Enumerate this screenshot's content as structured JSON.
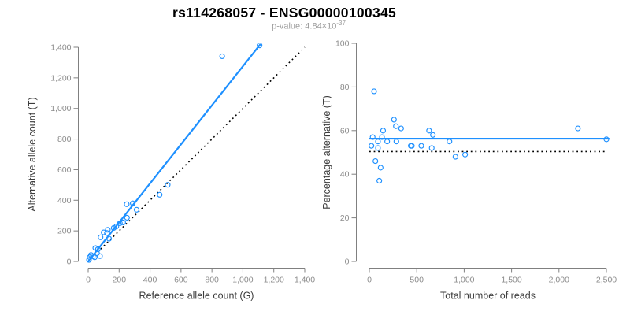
{
  "header": {
    "title": "rs114268057 - ENSG00000100345",
    "subtitle_text": "p-value: 4.84×10",
    "subtitle_sup": "-37"
  },
  "colors": {
    "accent": "#1e90ff",
    "reference_line": "#000000",
    "axis": "#808080",
    "tick_label": "#8c8c8c",
    "axis_title": "#3c3c3c",
    "title": "#000000",
    "subtitle": "#9c9c9c"
  },
  "chart_data": [
    {
      "type": "scatter",
      "name": "allele-count-scatter",
      "xlabel": "Reference allele count (G)",
      "ylabel": "Alternative allele count (T)",
      "xlim": [
        0,
        1400
      ],
      "ylim": [
        0,
        1400
      ],
      "grid": false,
      "legend": null,
      "xtick_values": [
        0,
        200,
        400,
        600,
        800,
        1000,
        1200,
        1400
      ],
      "xtick_labels": [
        "0",
        "200",
        "400",
        "600",
        "800",
        "1,000",
        "1,200",
        "1,400"
      ],
      "ytick_values": [
        0,
        200,
        400,
        600,
        800,
        1000,
        1200,
        1400
      ],
      "ytick_labels": [
        "0",
        "200",
        "400",
        "600",
        "800",
        "1,000",
        "1,200",
        "1,400"
      ],
      "points": [
        [
          5,
          10
        ],
        [
          10,
          28
        ],
        [
          18,
          42
        ],
        [
          30,
          34
        ],
        [
          42,
          27
        ],
        [
          46,
          88
        ],
        [
          57,
          54
        ],
        [
          63,
          80
        ],
        [
          76,
          35
        ],
        [
          80,
          158
        ],
        [
          100,
          190
        ],
        [
          121,
          186
        ],
        [
          127,
          207
        ],
        [
          135,
          149
        ],
        [
          165,
          219
        ],
        [
          182,
          229
        ],
        [
          205,
          250
        ],
        [
          226,
          255
        ],
        [
          251,
          286
        ],
        [
          249,
          374
        ],
        [
          288,
          380
        ],
        [
          313,
          338
        ],
        [
          462,
          436
        ],
        [
          514,
          501
        ],
        [
          866,
          1341
        ],
        [
          1108,
          1412
        ]
      ],
      "fit_line": {
        "style": "solid",
        "x1": 0,
        "y1": 0,
        "x2": 1110,
        "y2": 1416
      },
      "ref_line": {
        "style": "dotted",
        "x1": 0,
        "y1": 0,
        "x2": 1400,
        "y2": 1400
      }
    },
    {
      "type": "scatter",
      "name": "percentage-vs-reads-scatter",
      "xlabel": "Total number of reads",
      "ylabel": "Percentage alternative (T)",
      "xlim": [
        0,
        2500
      ],
      "ylim": [
        0,
        100
      ],
      "grid": false,
      "legend": null,
      "xtick_values": [
        0,
        500,
        1000,
        1500,
        2000,
        2500
      ],
      "xtick_labels": [
        "0",
        "500",
        "1,000",
        "1,500",
        "2,000",
        "2,500"
      ],
      "ytick_values": [
        0,
        20,
        40,
        60,
        80,
        100
      ],
      "ytick_labels": [
        "0",
        "20",
        "40",
        "60",
        "80",
        "100"
      ],
      "points": [
        [
          22,
          53
        ],
        [
          35,
          57
        ],
        [
          50,
          78
        ],
        [
          64,
          46
        ],
        [
          91,
          55
        ],
        [
          91,
          52
        ],
        [
          105,
          37
        ],
        [
          119,
          43
        ],
        [
          133,
          57
        ],
        [
          145,
          60
        ],
        [
          188,
          55
        ],
        [
          260,
          65
        ],
        [
          280,
          62
        ],
        [
          285,
          55
        ],
        [
          335,
          61
        ],
        [
          437,
          53
        ],
        [
          448,
          53
        ],
        [
          548,
          53
        ],
        [
          630,
          60
        ],
        [
          658,
          52
        ],
        [
          670,
          58
        ],
        [
          845,
          55
        ],
        [
          908,
          48
        ],
        [
          1010,
          49
        ],
        [
          2200,
          61
        ],
        [
          2500,
          56
        ]
      ],
      "fit_line": {
        "style": "solid",
        "x1": 0,
        "y1": 56.3,
        "x2": 2525,
        "y2": 56.3
      },
      "ref_line": {
        "style": "dotted",
        "x1": 0,
        "y1": 50.4,
        "x2": 2510,
        "y2": 50.4
      }
    }
  ]
}
